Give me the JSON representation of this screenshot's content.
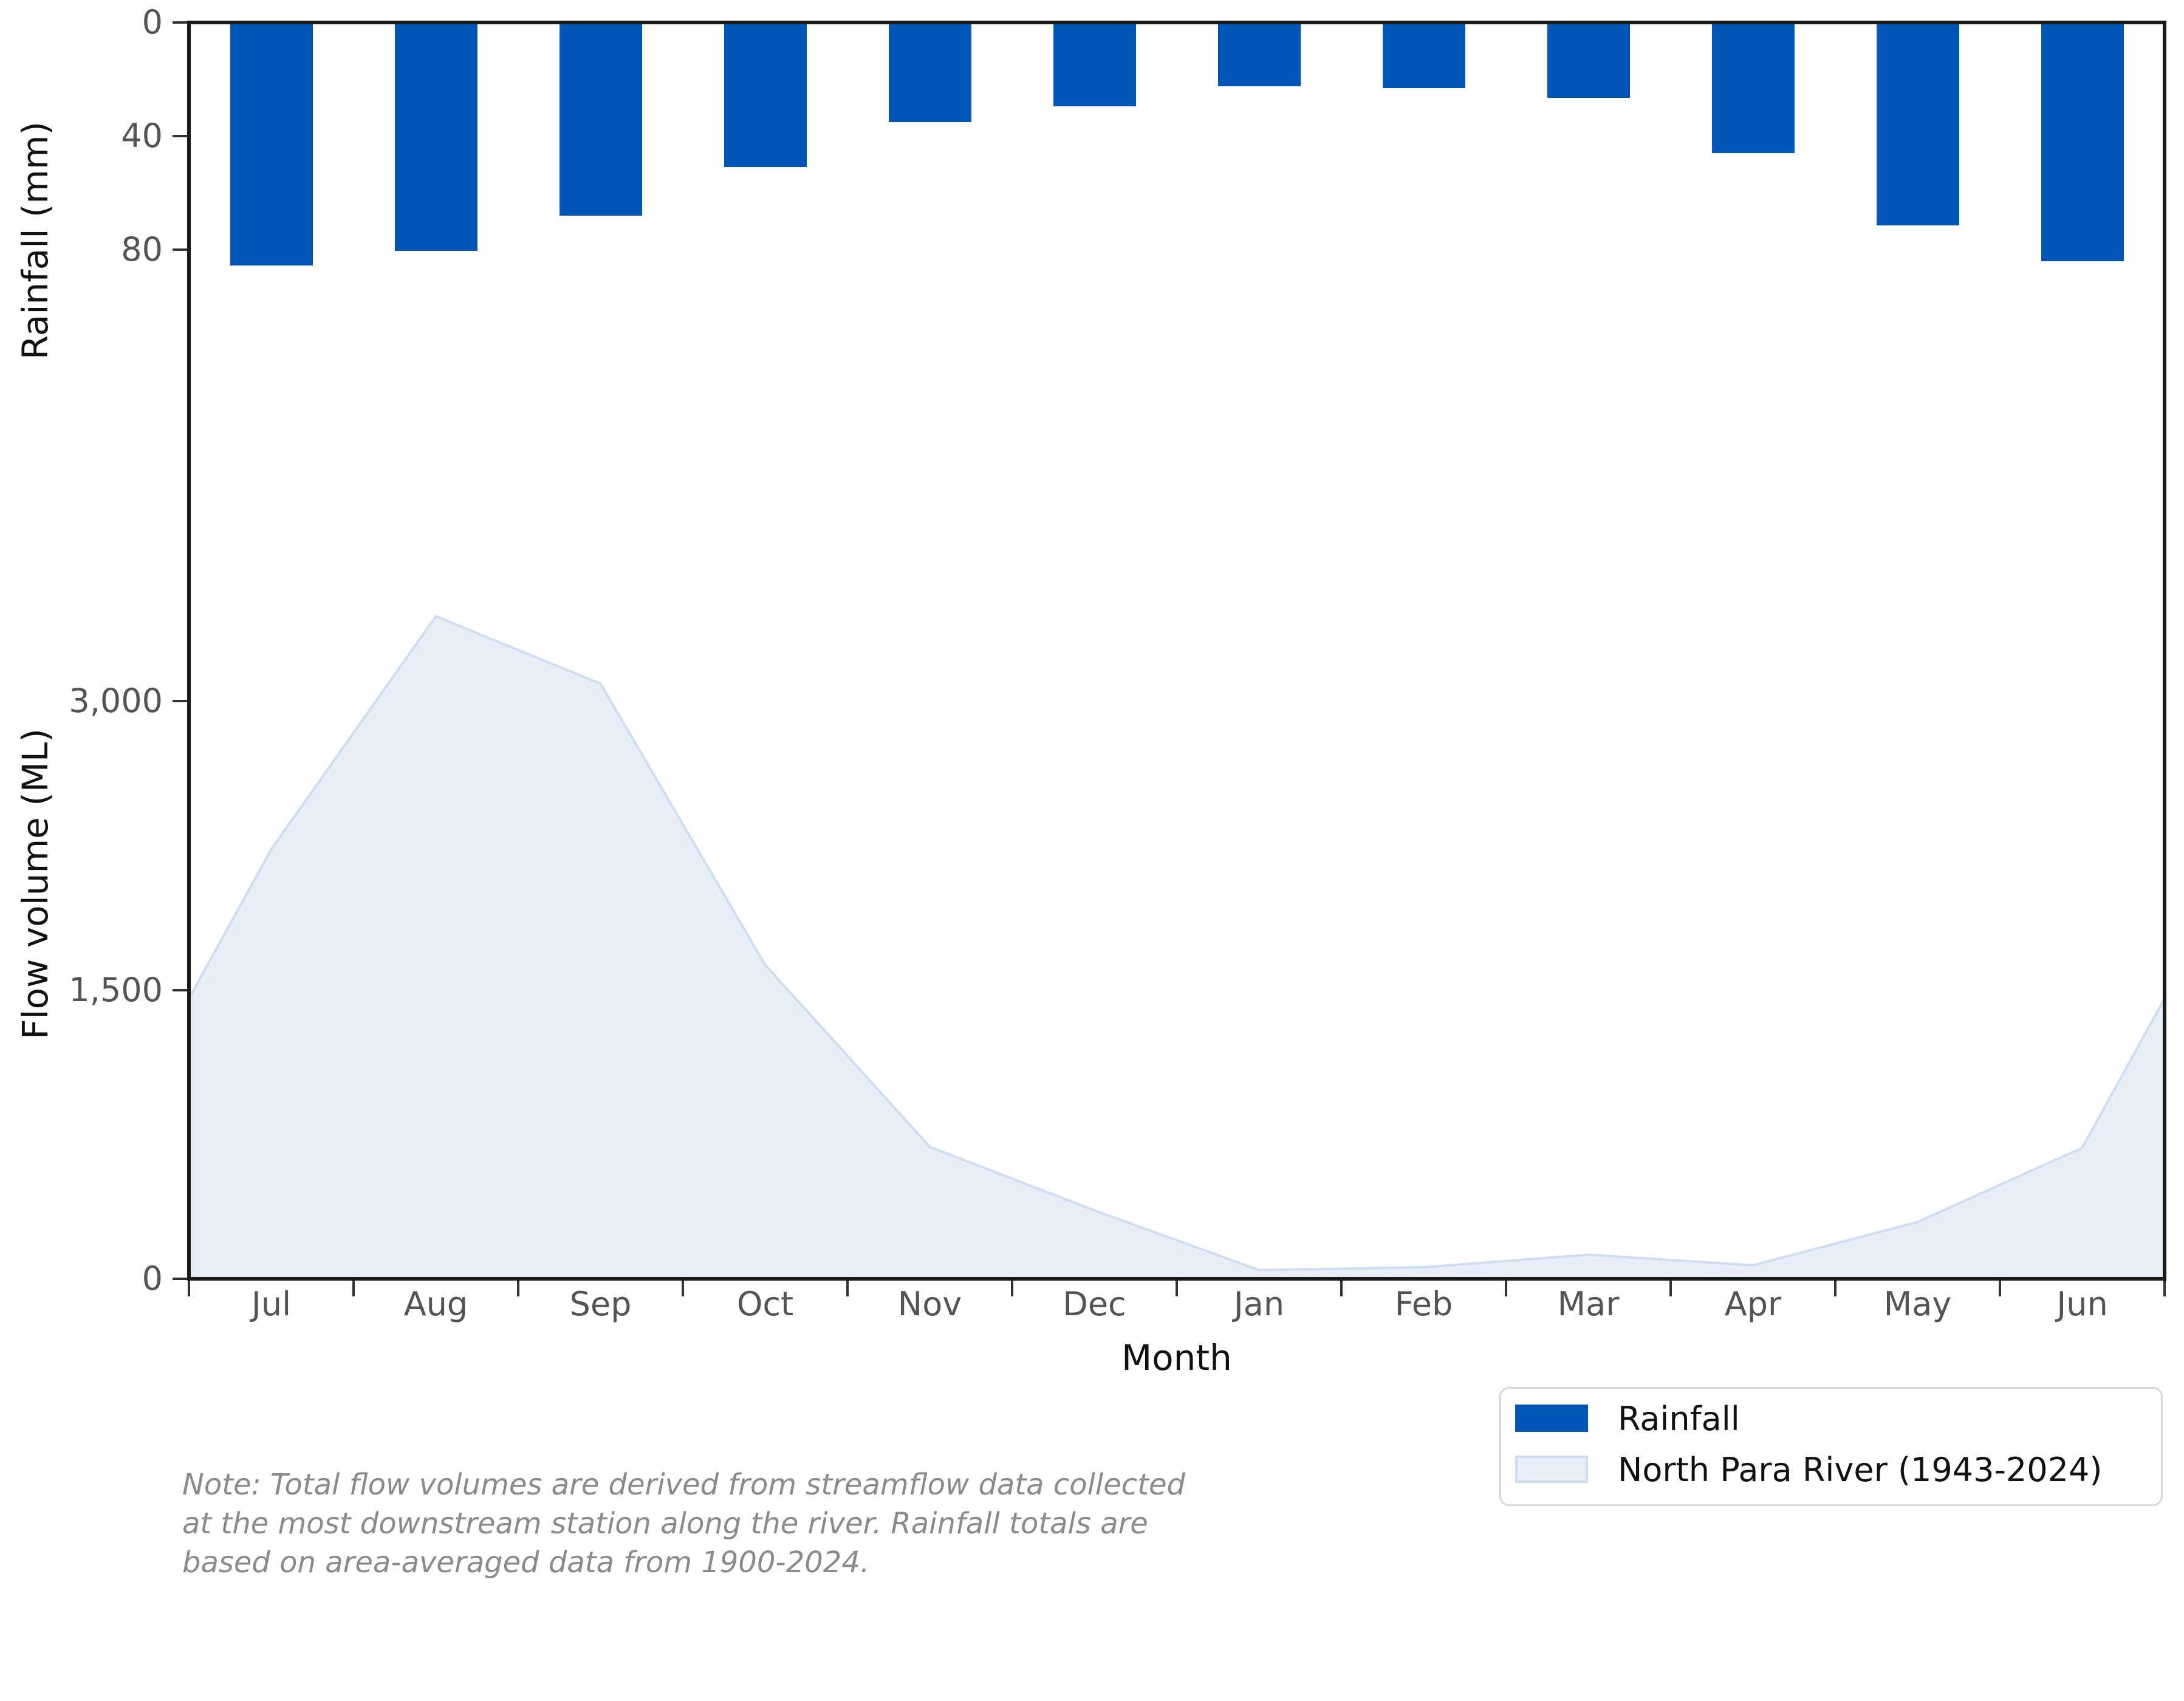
{
  "chart_data": [
    {
      "type": "bar",
      "name": "rainfall",
      "orientation": "inverted-from-top",
      "title": "",
      "xlabel": "Month",
      "ylabel": "Rainfall (mm)",
      "categories": [
        "Jul",
        "Aug",
        "Sep",
        "Oct",
        "Nov",
        "Dec",
        "Jan",
        "Feb",
        "Mar",
        "Apr",
        "May",
        "Jun"
      ],
      "values": [
        85.5,
        80.5,
        68,
        51,
        35,
        29.5,
        22.5,
        23,
        26.5,
        46,
        71.5,
        84
      ],
      "ylim": [
        0,
        152
      ],
      "yticks": [
        {
          "value": 0,
          "label": "0"
        },
        {
          "value": 40,
          "label": "40"
        },
        {
          "value": 80,
          "label": "80"
        }
      ],
      "grid": false
    },
    {
      "type": "area",
      "name": "flow",
      "title": "",
      "xlabel": "Month",
      "ylabel": "Flow volume (ML)",
      "categories": [
        "Jul",
        "Aug",
        "Sep",
        "Oct",
        "Nov",
        "Dec",
        "Jan",
        "Feb",
        "Mar",
        "Apr",
        "May",
        "Jun"
      ],
      "values": [
        2230,
        3440,
        3090,
        1630,
        685,
        355,
        45,
        60,
        125,
        70,
        295,
        680
      ],
      "edge_value": 1455,
      "ylim": [
        0,
        3600
      ],
      "yticks": [
        {
          "value": 0,
          "label": "0"
        },
        {
          "value": 1500,
          "label": "1,500"
        },
        {
          "value": 3000,
          "label": "3,000"
        }
      ],
      "grid": false,
      "legend_position": "lower right outside plot"
    }
  ],
  "axes": {
    "rainfall_label": "Rainfall (mm)",
    "flow_label": "Flow volume (ML)",
    "month_label": "Month",
    "month_ticklabels": [
      "Jul",
      "Aug",
      "Sep",
      "Oct",
      "Nov",
      "Dec",
      "Jan",
      "Feb",
      "Mar",
      "Apr",
      "May",
      "Jun"
    ]
  },
  "legend": {
    "items": [
      {
        "label": "Rainfall",
        "swatch": "solid-blue"
      },
      {
        "label": "North Para River (1943-2024)",
        "swatch": "light-blue-area"
      }
    ]
  },
  "note": {
    "line1": "Note: Total flow volumes are derived from streamflow data collected",
    "line2": "at the most downstream station along the river. Rainfall totals are",
    "line3": "based on area-averaged data from 1900-2024."
  },
  "colors": {
    "bar_blue": "#0057B7",
    "area_fill": "#E8EFF8",
    "area_edge": "#CDDEF2",
    "spine": "#1a1a1a",
    "tick_text": "#545454",
    "axis_text": "#111111",
    "note_text": "#8a8a8a",
    "legend_border": "#d8d8d8"
  }
}
